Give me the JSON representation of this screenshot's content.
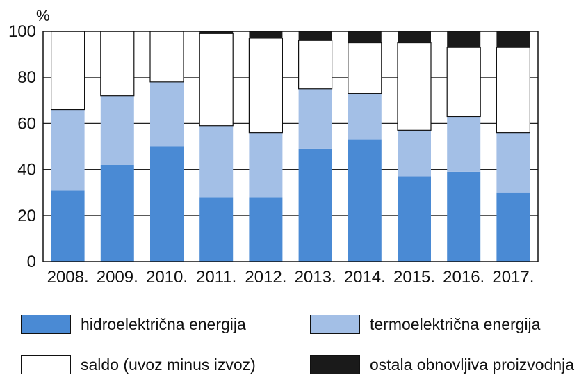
{
  "chart_data": {
    "type": "bar",
    "stacked": true,
    "unit_label": "%",
    "categories": [
      "2008.",
      "2009.",
      "2010.",
      "2011.",
      "2012.",
      "2013.",
      "2014.",
      "2015.",
      "2016.",
      "2017."
    ],
    "ylim": [
      0,
      100
    ],
    "yticks": [
      "0",
      "20",
      "40",
      "60",
      "80",
      "100"
    ],
    "grid": true,
    "series": [
      {
        "name": "hidroelektrična energija",
        "color": "#4a8ad4",
        "values": [
          31,
          42,
          50,
          28,
          28,
          49,
          53,
          37,
          39,
          30
        ]
      },
      {
        "name": "termoelektrična energija",
        "color": "#a3bfe6",
        "values": [
          35,
          30,
          28,
          31,
          28,
          26,
          20,
          20,
          24,
          26
        ]
      },
      {
        "name": "saldo (uvoz minus izvoz)",
        "color": "#ffffff",
        "values": [
          34,
          28,
          22,
          40,
          41,
          21,
          22,
          38,
          30,
          37
        ]
      },
      {
        "name": "ostala obnovljiva proizvodnja",
        "color": "#1a1a1a",
        "values": [
          0,
          0,
          0,
          1,
          3,
          4,
          5,
          5,
          7,
          7
        ]
      }
    ],
    "legend_position": "bottom"
  }
}
